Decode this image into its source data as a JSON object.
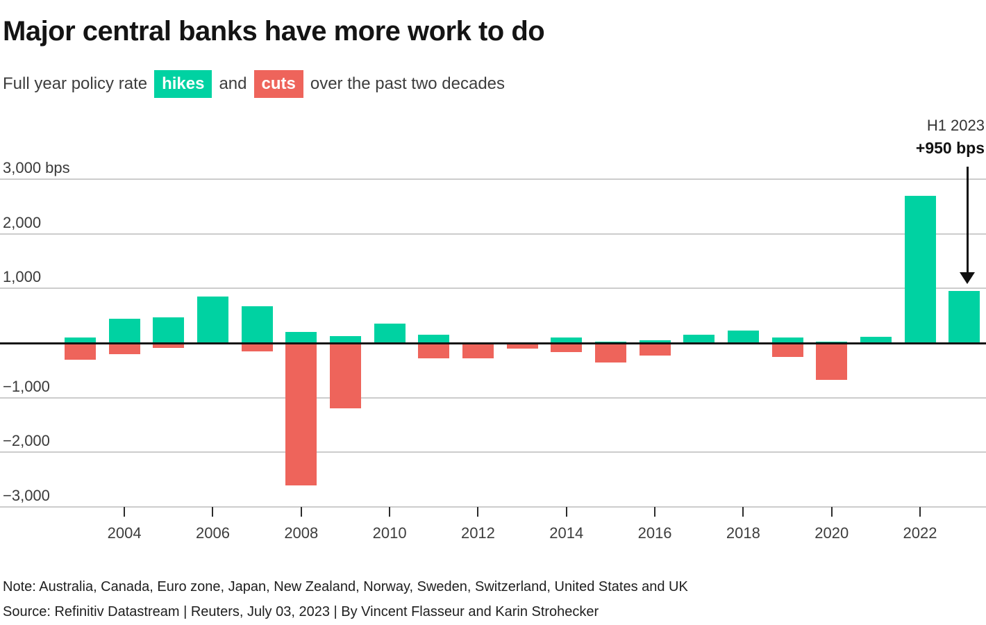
{
  "header": {
    "title": "Major central banks have more work to do",
    "subtitle": {
      "prefix": "Full year policy rate",
      "hikes_badge": "hikes",
      "conjunction": "and",
      "cuts_badge": "cuts",
      "suffix": "over the past two decades"
    }
  },
  "annotation": {
    "line1": "H1 2023",
    "line2": "+950 bps"
  },
  "colors": {
    "hike_green": "#00D2A2",
    "cut_red": "#EE645B",
    "zero_line": "#141414",
    "gridline": "#cccccc"
  },
  "chart_data": {
    "type": "bar",
    "title": "Major central banks have more work to do",
    "subtitle": "Full year policy rate hikes and cuts over the past two decades",
    "unit": "bps",
    "ylim": [
      -3000,
      3000
    ],
    "grid": "horizontal",
    "years": [
      2003,
      2004,
      2005,
      2006,
      2007,
      2008,
      2009,
      2010,
      2011,
      2012,
      2013,
      2014,
      2015,
      2016,
      2017,
      2018,
      2019,
      2020,
      2021,
      2022,
      2023
    ],
    "series": [
      {
        "name": "hikes",
        "color": "#00D2A2",
        "values": [
          100,
          450,
          475,
          850,
          675,
          200,
          125,
          350,
          150,
          0,
          0,
          100,
          25,
          50,
          150,
          225,
          100,
          25,
          110,
          2700,
          950
        ]
      },
      {
        "name": "cuts",
        "color": "#EE645B",
        "values": [
          -300,
          -200,
          -90,
          0,
          -150,
          -2600,
          -1200,
          0,
          -275,
          -275,
          -100,
          -160,
          -350,
          -225,
          0,
          0,
          -255,
          -675,
          0,
          0,
          0
        ]
      }
    ],
    "y_ticks": [
      {
        "label": "3,000 bps",
        "value": 3000
      },
      {
        "label": "2,000",
        "value": 2000
      },
      {
        "label": "1,000",
        "value": 1000
      },
      {
        "label": "−1,000",
        "value": -1000
      },
      {
        "label": "−2,000",
        "value": -2000
      },
      {
        "label": "−3,000",
        "value": -3000
      }
    ],
    "x_ticks": [
      {
        "label": "2004",
        "year": 2004
      },
      {
        "label": "2006",
        "year": 2006
      },
      {
        "label": "2008",
        "year": 2008
      },
      {
        "label": "2010",
        "year": 2010
      },
      {
        "label": "2012",
        "year": 2012
      },
      {
        "label": "2014",
        "year": 2014
      },
      {
        "label": "2016",
        "year": 2016
      },
      {
        "label": "2018",
        "year": 2018
      },
      {
        "label": "2020",
        "year": 2020
      },
      {
        "label": "2022",
        "year": 2022
      }
    ],
    "annotation": {
      "target_year": 2023,
      "label": "H1 2023",
      "value_label": "+950 bps"
    }
  },
  "footer": {
    "note": "Note: Australia, Canada, Euro zone, Japan, New Zealand, Norway, Sweden, Switzerland, United States and UK",
    "source": "Source: Refinitiv Datastream | Reuters, July 03, 2023 | By Vincent Flasseur and Karin Strohecker"
  }
}
